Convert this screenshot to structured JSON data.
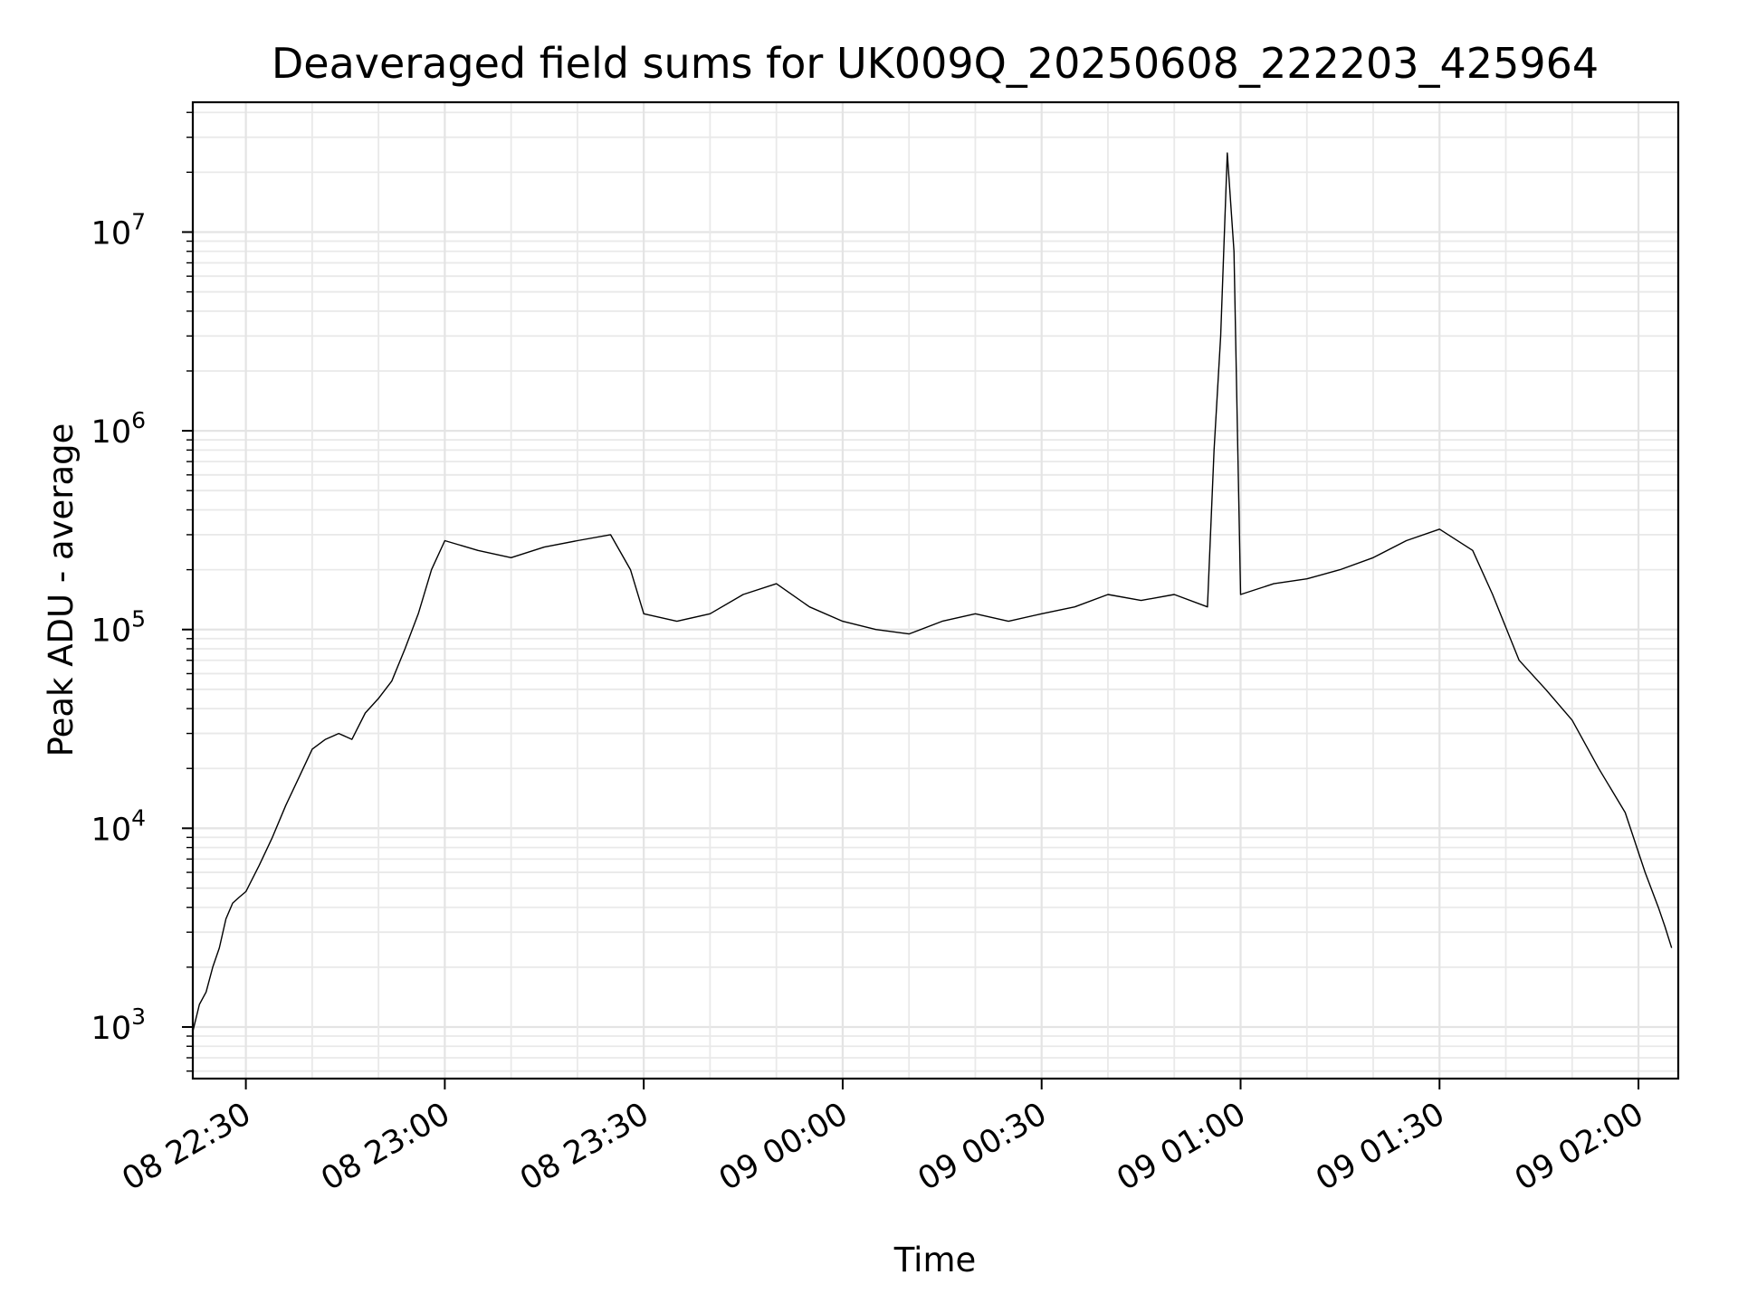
{
  "chart_data": {
    "type": "line",
    "title": "Deaveraged field sums for UK009Q_20250608_222203_425964",
    "xlabel": "Time",
    "ylabel": "Peak ADU - average",
    "x_range": [
      "2025-06-08 22:22:00",
      "2025-06-09 02:06:00"
    ],
    "y_range": [
      550,
      45000000
    ],
    "y_scale": "log",
    "grid": true,
    "x_ticks": [
      {
        "t": "2025-06-08 22:30",
        "label": "08 22:30"
      },
      {
        "t": "2025-06-08 23:00",
        "label": "08 23:00"
      },
      {
        "t": "2025-06-08 23:30",
        "label": "08 23:30"
      },
      {
        "t": "2025-06-09 00:00",
        "label": "09 00:00"
      },
      {
        "t": "2025-06-09 00:30",
        "label": "09 00:30"
      },
      {
        "t": "2025-06-09 01:00",
        "label": "09 01:00"
      },
      {
        "t": "2025-06-09 01:30",
        "label": "09 01:30"
      },
      {
        "t": "2025-06-09 02:00",
        "label": "09 02:00"
      }
    ],
    "y_ticks": [
      {
        "value": 1000,
        "base": "10",
        "exp": "3"
      },
      {
        "value": 10000,
        "base": "10",
        "exp": "4"
      },
      {
        "value": 100000,
        "base": "10",
        "exp": "5"
      },
      {
        "value": 1000000,
        "base": "10",
        "exp": "6"
      },
      {
        "value": 10000000,
        "base": "10",
        "exp": "7"
      }
    ],
    "series": [
      {
        "color": "#000000",
        "points": [
          [
            "2025-06-08 22:22",
            950
          ],
          [
            "2025-06-08 22:23",
            1300
          ],
          [
            "2025-06-08 22:24",
            1500
          ],
          [
            "2025-06-08 22:25",
            2000
          ],
          [
            "2025-06-08 22:26",
            2500
          ],
          [
            "2025-06-08 22:27",
            3500
          ],
          [
            "2025-06-08 22:28",
            4200
          ],
          [
            "2025-06-08 22:29",
            4500
          ],
          [
            "2025-06-08 22:30",
            4800
          ],
          [
            "2025-06-08 22:32",
            6500
          ],
          [
            "2025-06-08 22:34",
            9000
          ],
          [
            "2025-06-08 22:36",
            13000
          ],
          [
            "2025-06-08 22:38",
            18000
          ],
          [
            "2025-06-08 22:40",
            25000
          ],
          [
            "2025-06-08 22:42",
            28000
          ],
          [
            "2025-06-08 22:44",
            30000
          ],
          [
            "2025-06-08 22:46",
            28000
          ],
          [
            "2025-06-08 22:48",
            38000
          ],
          [
            "2025-06-08 22:50",
            45000
          ],
          [
            "2025-06-08 22:52",
            55000
          ],
          [
            "2025-06-08 22:54",
            80000
          ],
          [
            "2025-06-08 22:56",
            120000
          ],
          [
            "2025-06-08 22:58",
            200000
          ],
          [
            "2025-06-08 23:00",
            280000
          ],
          [
            "2025-06-08 23:05",
            250000
          ],
          [
            "2025-06-08 23:10",
            230000
          ],
          [
            "2025-06-08 23:15",
            260000
          ],
          [
            "2025-06-08 23:20",
            280000
          ],
          [
            "2025-06-08 23:25",
            300000
          ],
          [
            "2025-06-08 23:28",
            200000
          ],
          [
            "2025-06-08 23:30",
            120000
          ],
          [
            "2025-06-08 23:35",
            110000
          ],
          [
            "2025-06-08 23:40",
            120000
          ],
          [
            "2025-06-08 23:45",
            150000
          ],
          [
            "2025-06-08 23:50",
            170000
          ],
          [
            "2025-06-08 23:55",
            130000
          ],
          [
            "2025-06-09 00:00",
            110000
          ],
          [
            "2025-06-09 00:05",
            100000
          ],
          [
            "2025-06-09 00:10",
            95000
          ],
          [
            "2025-06-09 00:15",
            110000
          ],
          [
            "2025-06-09 00:20",
            120000
          ],
          [
            "2025-06-09 00:25",
            110000
          ],
          [
            "2025-06-09 00:30",
            120000
          ],
          [
            "2025-06-09 00:35",
            130000
          ],
          [
            "2025-06-09 00:40",
            150000
          ],
          [
            "2025-06-09 00:45",
            140000
          ],
          [
            "2025-06-09 00:50",
            150000
          ],
          [
            "2025-06-09 00:55",
            130000
          ],
          [
            "2025-06-09 00:56",
            800000
          ],
          [
            "2025-06-09 00:57",
            3000000
          ],
          [
            "2025-06-09 00:58",
            25000000
          ],
          [
            "2025-06-09 00:59",
            8000000
          ],
          [
            "2025-06-09 01:00",
            150000
          ],
          [
            "2025-06-09 01:05",
            170000
          ],
          [
            "2025-06-09 01:10",
            180000
          ],
          [
            "2025-06-09 01:15",
            200000
          ],
          [
            "2025-06-09 01:20",
            230000
          ],
          [
            "2025-06-09 01:25",
            280000
          ],
          [
            "2025-06-09 01:30",
            320000
          ],
          [
            "2025-06-09 01:35",
            250000
          ],
          [
            "2025-06-09 01:38",
            150000
          ],
          [
            "2025-06-09 01:42",
            70000
          ],
          [
            "2025-06-09 01:46",
            50000
          ],
          [
            "2025-06-09 01:50",
            35000
          ],
          [
            "2025-06-09 01:54",
            20000
          ],
          [
            "2025-06-09 01:58",
            12000
          ],
          [
            "2025-06-09 02:01",
            6000
          ],
          [
            "2025-06-09 02:03",
            4000
          ],
          [
            "2025-06-09 02:04",
            3200
          ],
          [
            "2025-06-09 02:05",
            2500
          ]
        ]
      }
    ]
  }
}
